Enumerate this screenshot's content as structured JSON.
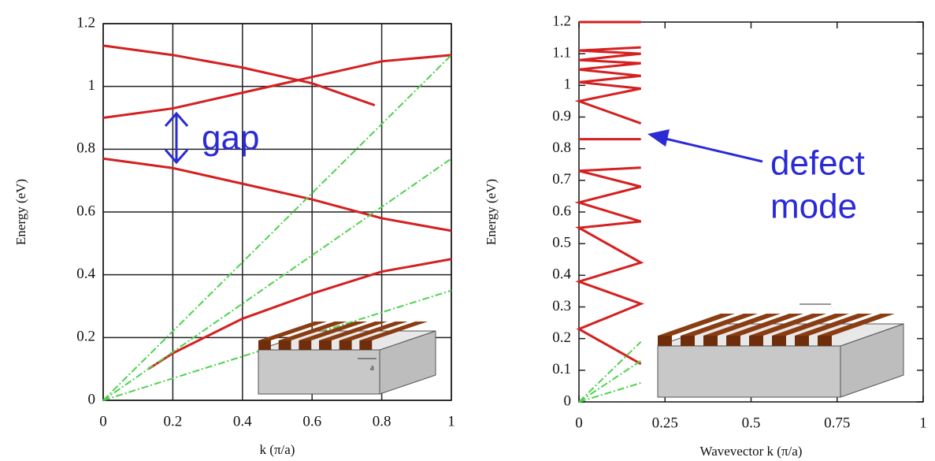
{
  "chart_data": [
    {
      "type": "line",
      "xlabel": "k (π/a)",
      "ylabel": "Energy (eV)",
      "xlim": [
        0,
        1
      ],
      "ylim": [
        0,
        1.2
      ],
      "xticks": [
        0,
        0.2,
        0.4,
        0.6,
        0.8,
        1
      ],
      "yticks": [
        0,
        0.2,
        0.4,
        0.6,
        0.8,
        1,
        1.2
      ],
      "grid": true,
      "series": [
        {
          "color": "#d42020",
          "x": [
            0.13,
            0.2,
            0.4,
            0.6,
            0.8,
            1
          ],
          "values": [
            0.1,
            0.15,
            0.26,
            0.34,
            0.41,
            0.45
          ]
        },
        {
          "color": "#d42020",
          "x": [
            0,
            0.2,
            0.4,
            0.6,
            0.8,
            1
          ],
          "values": [
            0.77,
            0.74,
            0.69,
            0.64,
            0.58,
            0.54
          ]
        },
        {
          "color": "#d42020",
          "x": [
            0,
            0.2,
            0.4,
            0.6,
            0.8,
            1
          ],
          "values": [
            0.9,
            0.93,
            0.98,
            1.03,
            1.08,
            1.1
          ]
        },
        {
          "color": "#d42020",
          "x": [
            0,
            0.2,
            0.4,
            0.6,
            0.78
          ],
          "values": [
            1.13,
            1.1,
            1.06,
            1.01,
            0.94
          ]
        },
        {
          "color": "#4fd24f",
          "x": [
            0,
            1
          ],
          "values": [
            0,
            1.1
          ]
        },
        {
          "color": "#4fd24f",
          "x": [
            0,
            1
          ],
          "values": [
            0,
            0.77
          ]
        },
        {
          "color": "#4fd24f",
          "x": [
            0,
            1
          ],
          "values": [
            0,
            0.35
          ]
        }
      ],
      "annotation": "gap",
      "inset_label": "a"
    },
    {
      "type": "line",
      "xlabel": "Wavevector k (π/a)",
      "ylabel": "Energy (eV)",
      "xlim": [
        0,
        1
      ],
      "ylim": [
        0,
        1.2
      ],
      "xticks": [
        0,
        0.25,
        0.5,
        0.75,
        1
      ],
      "yticks": [
        0,
        0.1,
        0.2,
        0.3,
        0.4,
        0.5,
        0.6,
        0.7,
        0.8,
        0.9,
        1,
        1.1,
        1.2
      ],
      "grid": false,
      "series": [
        {
          "color": "#d42020",
          "x": [
            0.18,
            0,
            0.18,
            0,
            0.18,
            0,
            0.18,
            0,
            0.18,
            0,
            0.18
          ],
          "values": [
            0.12,
            0.23,
            0.31,
            0.38,
            0.44,
            0.55,
            0.57,
            0.63,
            0.68,
            0.73,
            0.74
          ]
        },
        {
          "color": "#d42020",
          "x": [
            0,
            0.18
          ],
          "values": [
            0.83,
            0.83
          ]
        },
        {
          "color": "#d42020",
          "x": [
            0.18,
            0,
            0.18,
            0,
            0.18,
            0,
            0.18,
            0,
            0.18,
            0,
            0.18
          ],
          "values": [
            0.88,
            0.95,
            0.99,
            1.01,
            1.03,
            1.05,
            1.07,
            1.08,
            1.1,
            1.11,
            1.12
          ]
        },
        {
          "color": "#d42020",
          "x": [
            0,
            0.18
          ],
          "values": [
            1.2,
            1.2
          ]
        },
        {
          "color": "#4fd24f",
          "x": [
            0,
            0.18
          ],
          "values": [
            0,
            0.19
          ]
        },
        {
          "color": "#4fd24f",
          "x": [
            0,
            0.18
          ],
          "values": [
            0,
            0.13
          ]
        },
        {
          "color": "#4fd24f",
          "x": [
            0,
            0.18
          ],
          "values": [
            0,
            0.06
          ]
        }
      ],
      "annotation": [
        "defect",
        "mode"
      ]
    }
  ]
}
